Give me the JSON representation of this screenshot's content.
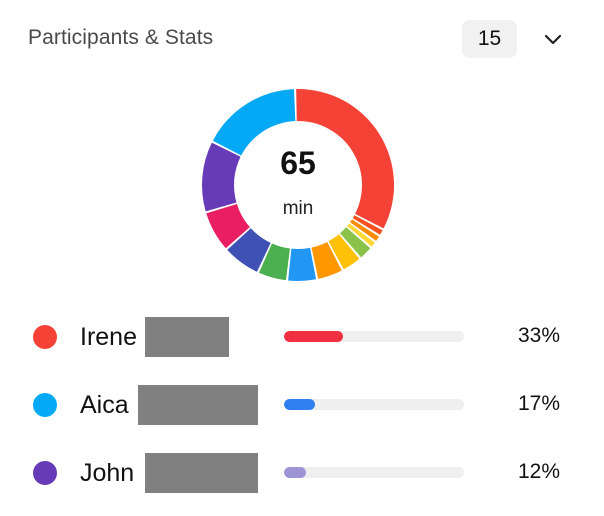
{
  "header": {
    "title": "Participants & Stats",
    "count": "15",
    "chevron_icon": "chevron-down-icon"
  },
  "summary": {
    "value": "65",
    "unit": "min"
  },
  "donut_segments": [
    {
      "color": "#f44336",
      "fraction": 0.33
    },
    {
      "color": "#f4511e",
      "fraction": 0.012
    },
    {
      "color": "#fb8c00",
      "fraction": 0.012
    },
    {
      "color": "#fdd835",
      "fraction": 0.012
    },
    {
      "color": "#8bc34a",
      "fraction": 0.025
    },
    {
      "color": "#ffc107",
      "fraction": 0.035
    },
    {
      "color": "#ff9800",
      "fraction": 0.045
    },
    {
      "color": "#2196f3",
      "fraction": 0.05
    },
    {
      "color": "#4caf50",
      "fraction": 0.05
    },
    {
      "color": "#3f51b5",
      "fraction": 0.065
    },
    {
      "color": "#e91e63",
      "fraction": 0.07
    },
    {
      "color": "#673ab7",
      "fraction": 0.12
    },
    {
      "color": "#03a9f4",
      "fraction": 0.17
    }
  ],
  "participants": [
    {
      "name": "Irene",
      "dot_color": "#f44336",
      "bar_color": "#f03040",
      "percent": "33%",
      "fraction": 0.33
    },
    {
      "name": "Aica",
      "dot_color": "#03a9f4",
      "bar_color": "#2f7ff0",
      "percent": "17%",
      "fraction": 0.17
    },
    {
      "name": "John",
      "dot_color": "#673ab7",
      "bar_color": "#9d94d6",
      "percent": "12%",
      "fraction": 0.12
    }
  ]
}
